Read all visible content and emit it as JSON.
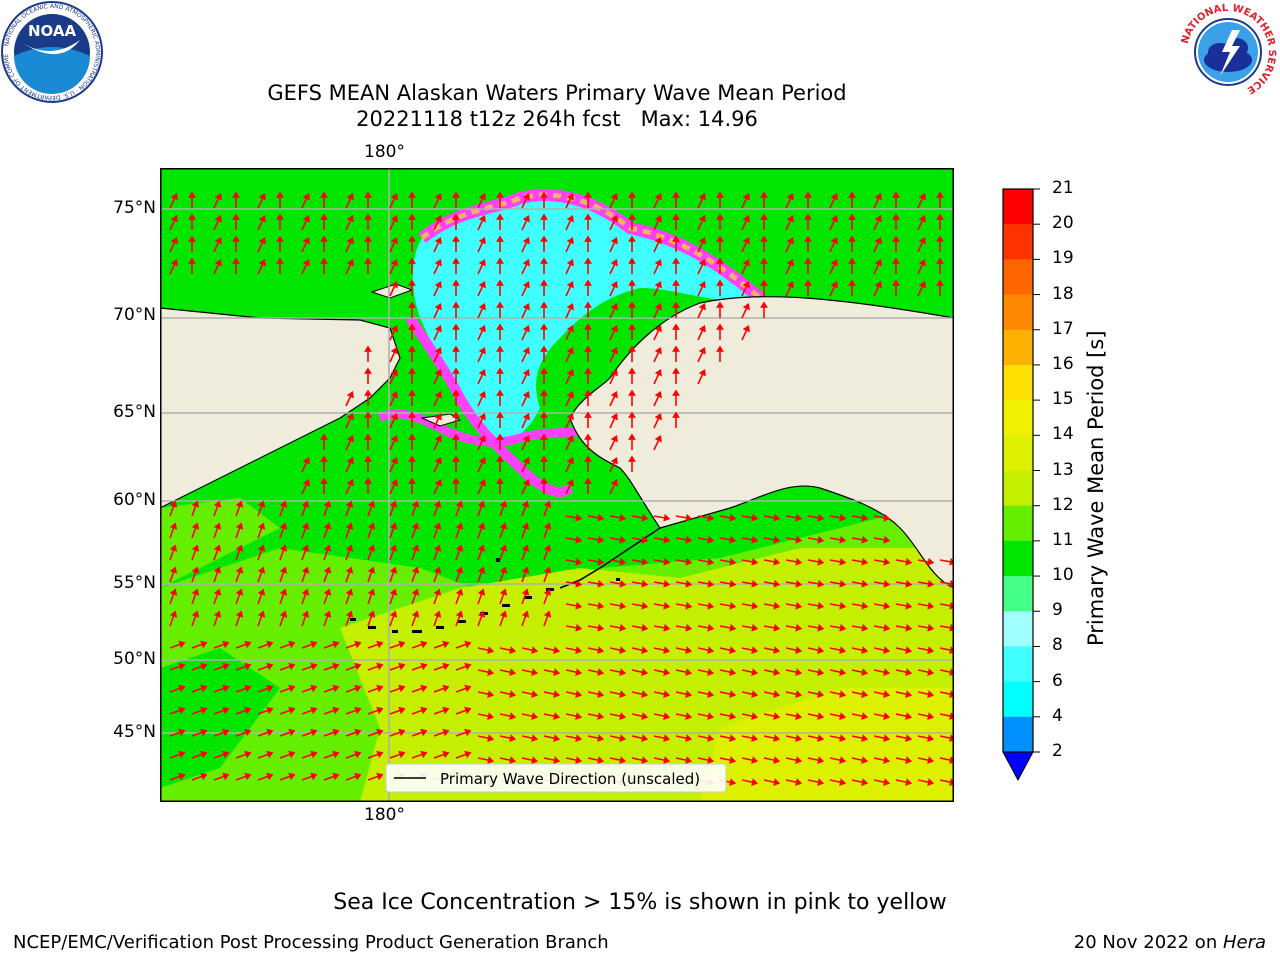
{
  "title": {
    "line1": "GEFS MEAN Alaskan Waters Primary Wave Mean Period",
    "line2": "20221118 t12z 264h fcst   Max: 14.96"
  },
  "map": {
    "lon_label_top": "180°",
    "lon_label_bottom": "180°",
    "lat_labels": [
      "75°N",
      "70°N",
      "65°N",
      "60°N",
      "55°N",
      "50°N",
      "45°N"
    ],
    "legend_label": "Primary Wave Direction (unscaled)",
    "colors": {
      "land": "#efecdc",
      "arrow": "#ff0000",
      "ice": "#ff40ff",
      "ice_edge": "#ffb060"
    }
  },
  "colorbar": {
    "label": "Primary Wave Mean Period [s]",
    "ticks": [
      "21",
      "20",
      "19",
      "18",
      "17",
      "16",
      "15",
      "14",
      "13",
      "12",
      "11",
      "10",
      "9",
      "8",
      "6",
      "4",
      "2"
    ],
    "colors": [
      "#ff0000",
      "#ff3300",
      "#ff6600",
      "#ff8800",
      "#ffb000",
      "#ffe000",
      "#f0f000",
      "#ddf000",
      "#c4f000",
      "#66ee00",
      "#00e600",
      "#44ff88",
      "#a0ffff",
      "#40ffff",
      "#00ffff",
      "#0090ff",
      "#0055ff"
    ]
  },
  "logos": {
    "noaa_text": "NOAA",
    "noaa_ring": "NATIONAL OCEANIC AND ATMOSPHERIC ADMINISTRATION · U.S. DEPARTMENT OF COMMERCE",
    "nws_ring": "NATIONAL WEATHER SERVICE"
  },
  "notes": {
    "ice": "Sea Ice Concentration > 15% is shown in pink to yellow",
    "producer": "NCEP/EMC/Verification Post Processing Product Generation Branch",
    "date_prefix": "20 Nov 2022 on ",
    "date_host": "Hera"
  }
}
